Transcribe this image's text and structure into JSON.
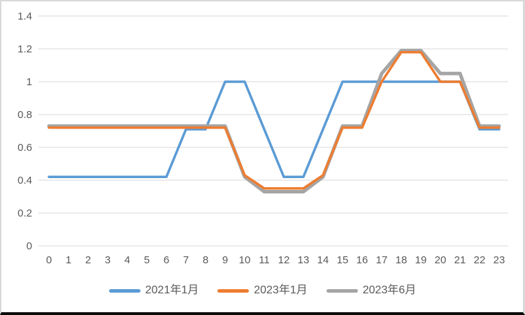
{
  "chart_data": {
    "type": "line",
    "title": "",
    "xlabel": "",
    "ylabel": "",
    "x_categories": [
      "0",
      "1",
      "2",
      "3",
      "4",
      "5",
      "6",
      "7",
      "8",
      "9",
      "10",
      "11",
      "12",
      "13",
      "14",
      "15",
      "16",
      "17",
      "18",
      "19",
      "20",
      "21",
      "22",
      "23"
    ],
    "y_ticks": [
      "0",
      "0.2",
      "0.4",
      "0.6",
      "0.8",
      "1",
      "1.2",
      "1.4"
    ],
    "ylim": [
      0,
      1.4
    ],
    "grid": "horizontal",
    "legend_position": "bottom",
    "series": [
      {
        "name": "2021年1月",
        "color": "#5B9BD5",
        "values": [
          0.42,
          0.42,
          0.42,
          0.42,
          0.42,
          0.42,
          0.42,
          0.71,
          0.71,
          1,
          1,
          0.71,
          0.42,
          0.42,
          0.71,
          1,
          1,
          1,
          1,
          1,
          1,
          1,
          0.71,
          0.71
        ]
      },
      {
        "name": "2023年1月",
        "color": "#ED7D31",
        "values": [
          0.72,
          0.72,
          0.72,
          0.72,
          0.72,
          0.72,
          0.72,
          0.72,
          0.72,
          0.72,
          0.43,
          0.35,
          0.35,
          0.35,
          0.43,
          0.72,
          0.72,
          1,
          1.18,
          1.18,
          1,
          1,
          0.72,
          0.72
        ]
      },
      {
        "name": "2023年6月",
        "color": "#A5A5A5",
        "values": [
          0.73,
          0.73,
          0.73,
          0.73,
          0.73,
          0.73,
          0.73,
          0.73,
          0.73,
          0.73,
          0.42,
          0.33,
          0.33,
          0.33,
          0.42,
          0.73,
          0.73,
          1.05,
          1.19,
          1.19,
          1.05,
          1.05,
          0.73,
          0.73
        ]
      }
    ]
  },
  "colors": {
    "grid_line": "#D9D9D9",
    "axis_text": "#595959",
    "background": "#FFFFFF",
    "frame_border": "#D9D9D9",
    "bottom_bar": "#0A0A0A"
  }
}
